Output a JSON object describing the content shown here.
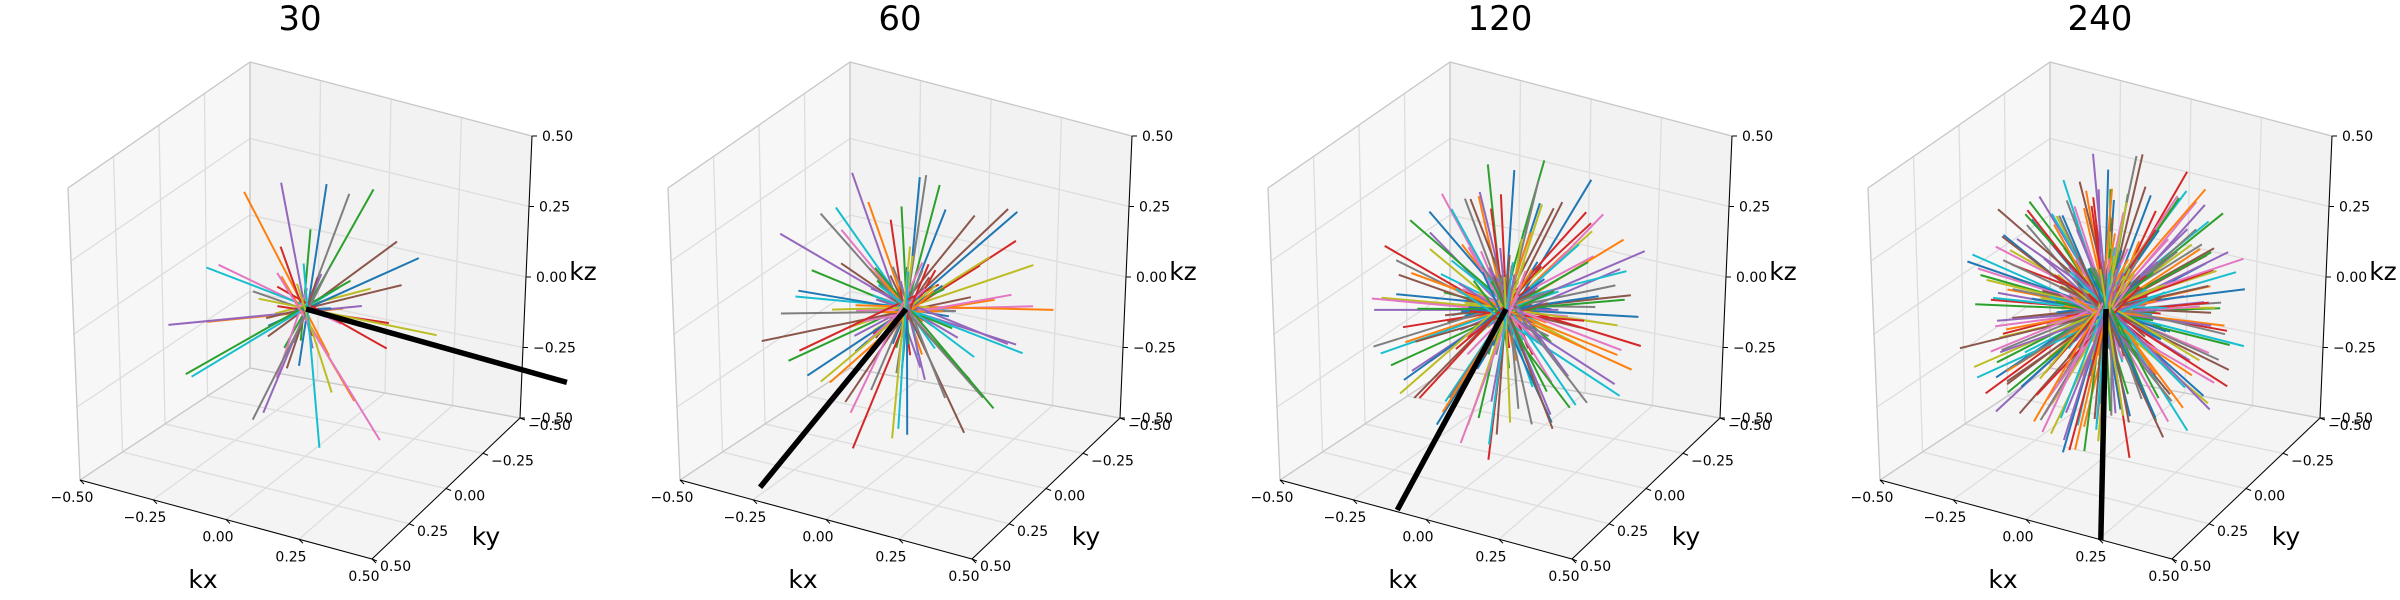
{
  "figure": {
    "colors": [
      "#1f77b4",
      "#ff7f0e",
      "#2ca02c",
      "#d62728",
      "#9467bd",
      "#8c564b",
      "#e377c2",
      "#7f7f7f",
      "#bcbd22",
      "#17becf"
    ],
    "highlight_color": "#000000",
    "pane_color": "#f2f2f2",
    "grid_color": "#dddddd"
  },
  "chart_data": [
    {
      "type": "line3d",
      "title": "30",
      "spokes": 30,
      "xlabel": "kx",
      "ylabel": "ky",
      "zlabel": "kz",
      "xlim": [
        -0.5,
        0.5
      ],
      "ylim": [
        -0.5,
        0.5
      ],
      "zlim": [
        -0.5,
        0.5
      ],
      "xticks": [
        "−0.50",
        "−0.25",
        "0.00",
        "0.25",
        "0.50"
      ],
      "yticks": [
        "−0.50",
        "−0.25",
        "0.00",
        "0.25",
        "0.50"
      ],
      "zticks": [
        "−0.50",
        "−0.25",
        "0.00",
        "0.25",
        "0.50"
      ],
      "grid": true
    },
    {
      "type": "line3d",
      "title": "60",
      "spokes": 60,
      "xlabel": "kx",
      "ylabel": "ky",
      "zlabel": "kz",
      "xlim": [
        -0.5,
        0.5
      ],
      "ylim": [
        -0.5,
        0.5
      ],
      "zlim": [
        -0.5,
        0.5
      ],
      "xticks": [
        "−0.50",
        "−0.25",
        "0.00",
        "0.25",
        "0.50"
      ],
      "yticks": [
        "−0.50",
        "−0.25",
        "0.00",
        "0.25",
        "0.50"
      ],
      "zticks": [
        "−0.50",
        "−0.25",
        "0.00",
        "0.25",
        "0.50"
      ],
      "grid": true
    },
    {
      "type": "line3d",
      "title": "120",
      "spokes": 120,
      "xlabel": "kx",
      "ylabel": "ky",
      "zlabel": "kz",
      "xlim": [
        -0.5,
        0.5
      ],
      "ylim": [
        -0.5,
        0.5
      ],
      "zlim": [
        -0.5,
        0.5
      ],
      "xticks": [
        "−0.50",
        "−0.25",
        "0.00",
        "0.25",
        "0.50"
      ],
      "yticks": [
        "−0.50",
        "−0.25",
        "0.00",
        "0.25",
        "0.50"
      ],
      "zticks": [
        "−0.50",
        "−0.25",
        "0.00",
        "0.25",
        "0.50"
      ],
      "grid": true
    },
    {
      "type": "line3d",
      "title": "240",
      "spokes": 240,
      "xlabel": "kx",
      "ylabel": "ky",
      "zlabel": "kz",
      "xlim": [
        -0.5,
        0.5
      ],
      "ylim": [
        -0.5,
        0.5
      ],
      "zlim": [
        -0.5,
        0.5
      ],
      "xticks": [
        "−0.50",
        "−0.25",
        "0.00",
        "0.25",
        "0.50"
      ],
      "yticks": [
        "−0.50",
        "−0.25",
        "0.00",
        "0.25",
        "0.50"
      ],
      "zticks": [
        "−0.50",
        "−0.25",
        "0.00",
        "0.25",
        "0.50"
      ],
      "grid": true
    }
  ]
}
